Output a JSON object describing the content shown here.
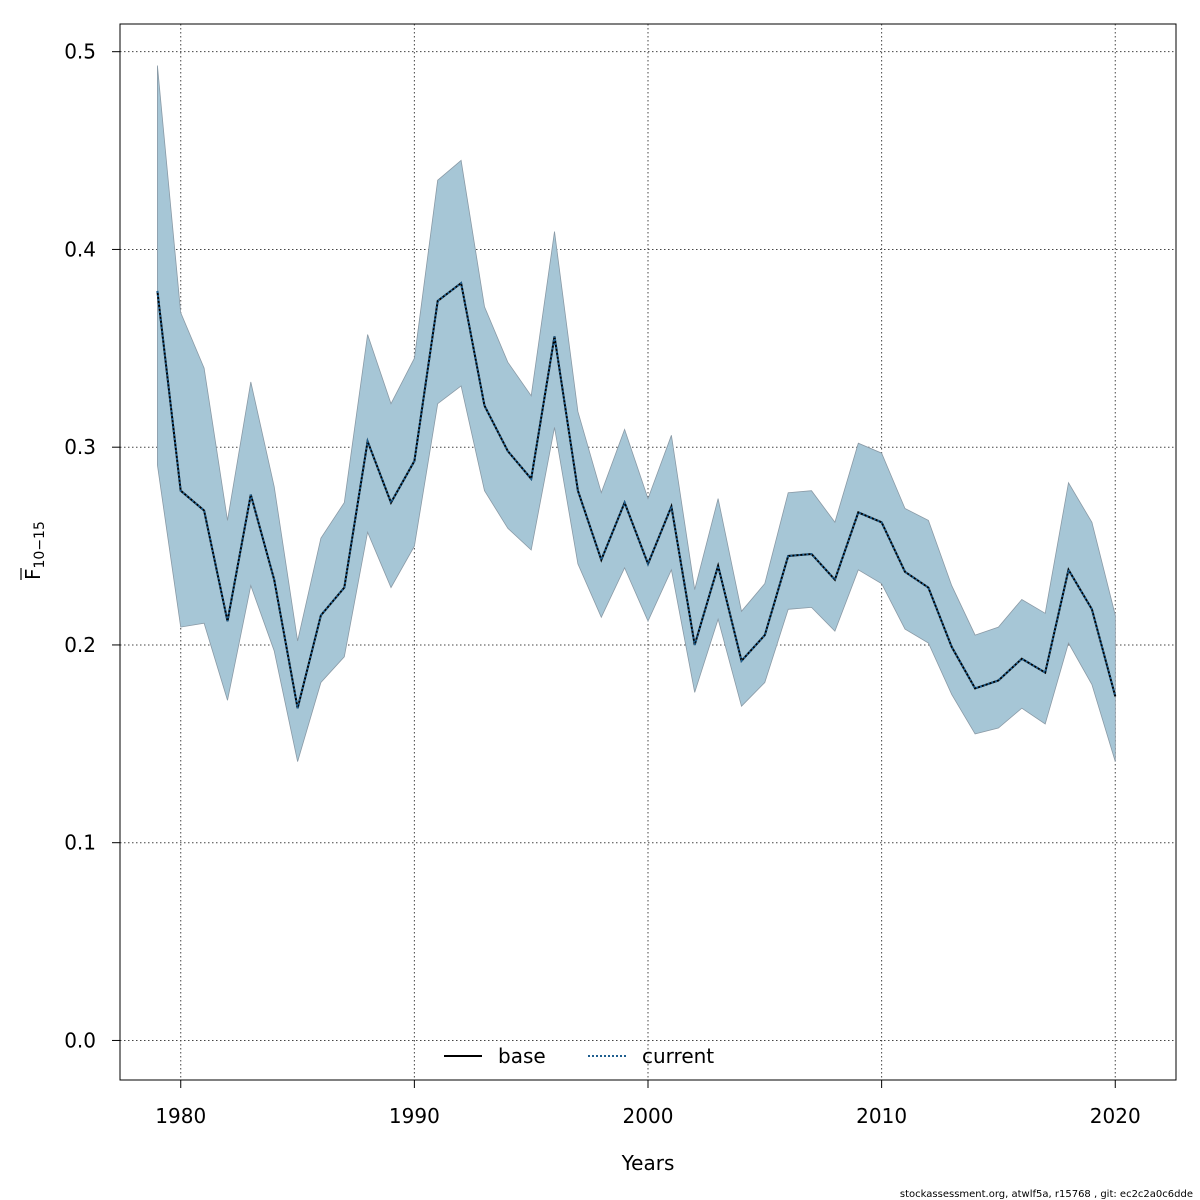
{
  "chart_data": {
    "type": "line",
    "xlabel": "Years",
    "ylabel_base": "F",
    "ylabel_sub": "10−15",
    "xlim": [
      1977.4,
      2022.6
    ],
    "ylim": [
      -0.02,
      0.514
    ],
    "x_ticks": [
      1980,
      1990,
      2000,
      2010,
      2020
    ],
    "y_ticks": [
      0.0,
      0.1,
      0.2,
      0.3,
      0.4,
      0.5
    ],
    "y_tick_labels": [
      "0.0",
      "0.1",
      "0.2",
      "0.3",
      "0.4",
      "0.5"
    ],
    "grid": true,
    "legend_position": "bottom-center",
    "band_color": "#a6c6d6",
    "band_edge_color": "#8a9aa6",
    "x": [
      1979,
      1980,
      1981,
      1982,
      1983,
      1984,
      1985,
      1986,
      1987,
      1988,
      1989,
      1990,
      1991,
      1992,
      1993,
      1994,
      1995,
      1996,
      1997,
      1998,
      1999,
      2000,
      2001,
      2002,
      2003,
      2004,
      2005,
      2006,
      2007,
      2008,
      2009,
      2010,
      2011,
      2012,
      2013,
      2014,
      2015,
      2016,
      2017,
      2018,
      2019,
      2020
    ],
    "lower": [
      0.291,
      0.209,
      0.211,
      0.172,
      0.23,
      0.197,
      0.141,
      0.181,
      0.194,
      0.257,
      0.229,
      0.25,
      0.322,
      0.331,
      0.278,
      0.259,
      0.248,
      0.31,
      0.241,
      0.214,
      0.239,
      0.212,
      0.238,
      0.176,
      0.213,
      0.169,
      0.181,
      0.218,
      0.219,
      0.207,
      0.238,
      0.231,
      0.208,
      0.201,
      0.175,
      0.155,
      0.158,
      0.168,
      0.16,
      0.201,
      0.18,
      0.141
    ],
    "upper": [
      0.493,
      0.368,
      0.34,
      0.263,
      0.333,
      0.28,
      0.202,
      0.254,
      0.272,
      0.357,
      0.322,
      0.345,
      0.435,
      0.445,
      0.371,
      0.343,
      0.326,
      0.409,
      0.318,
      0.277,
      0.309,
      0.274,
      0.306,
      0.228,
      0.274,
      0.217,
      0.231,
      0.277,
      0.278,
      0.262,
      0.302,
      0.297,
      0.269,
      0.263,
      0.23,
      0.205,
      0.209,
      0.223,
      0.216,
      0.282,
      0.262,
      0.215
    ],
    "series": [
      {
        "name": "base",
        "color": "#000000",
        "style": "solid",
        "values": [
          0.379,
          0.278,
          0.268,
          0.212,
          0.276,
          0.233,
          0.168,
          0.215,
          0.229,
          0.303,
          0.272,
          0.293,
          0.374,
          0.383,
          0.321,
          0.298,
          0.284,
          0.356,
          0.278,
          0.243,
          0.272,
          0.241,
          0.27,
          0.2,
          0.24,
          0.192,
          0.205,
          0.245,
          0.246,
          0.233,
          0.267,
          0.262,
          0.237,
          0.229,
          0.199,
          0.178,
          0.182,
          0.193,
          0.186,
          0.238,
          0.218,
          0.174
        ]
      },
      {
        "name": "current",
        "color": "#1f5f8f",
        "style": "dotted",
        "values": [
          0.379,
          0.278,
          0.268,
          0.212,
          0.276,
          0.233,
          0.168,
          0.215,
          0.229,
          0.303,
          0.272,
          0.293,
          0.374,
          0.383,
          0.321,
          0.298,
          0.284,
          0.356,
          0.278,
          0.243,
          0.272,
          0.241,
          0.27,
          0.2,
          0.24,
          0.192,
          0.205,
          0.245,
          0.246,
          0.233,
          0.267,
          0.262,
          0.237,
          0.229,
          0.199,
          0.178,
          0.182,
          0.193,
          0.186,
          0.238,
          0.218,
          0.174
        ]
      }
    ]
  },
  "footer": "stockassessment.org, atwlf5a, r15768 , git: ec2c2a0c6dde"
}
